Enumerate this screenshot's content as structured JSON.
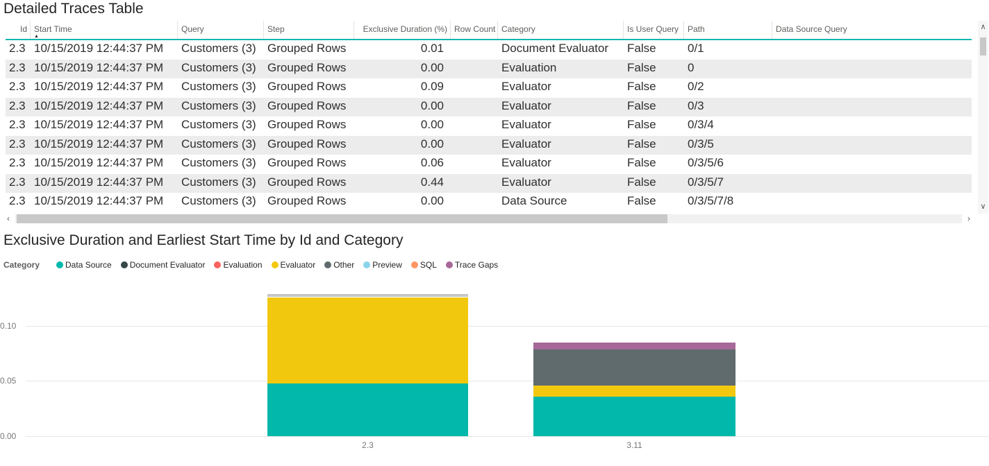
{
  "table": {
    "title": "Detailed Traces Table",
    "sorted_column": "Start Time",
    "sort_direction": "ascending",
    "columns": [
      "Id",
      "Start Time",
      "Query",
      "Step",
      "Exclusive Duration (%)",
      "Row Count",
      "Category",
      "Is User Query",
      "Path",
      "Data Source Query"
    ],
    "rows": [
      [
        "2.3",
        "10/15/2019 12:44:37 PM",
        "Customers (3)",
        "Grouped Rows",
        "0.01",
        "",
        "Document Evaluator",
        "False",
        "0/1",
        ""
      ],
      [
        "2.3",
        "10/15/2019 12:44:37 PM",
        "Customers (3)",
        "Grouped Rows",
        "0.00",
        "",
        "Evaluation",
        "False",
        "0",
        ""
      ],
      [
        "2.3",
        "10/15/2019 12:44:37 PM",
        "Customers (3)",
        "Grouped Rows",
        "0.09",
        "",
        "Evaluator",
        "False",
        "0/2",
        ""
      ],
      [
        "2.3",
        "10/15/2019 12:44:37 PM",
        "Customers (3)",
        "Grouped Rows",
        "0.00",
        "",
        "Evaluator",
        "False",
        "0/3",
        ""
      ],
      [
        "2.3",
        "10/15/2019 12:44:37 PM",
        "Customers (3)",
        "Grouped Rows",
        "0.00",
        "",
        "Evaluator",
        "False",
        "0/3/4",
        ""
      ],
      [
        "2.3",
        "10/15/2019 12:44:37 PM",
        "Customers (3)",
        "Grouped Rows",
        "0.00",
        "",
        "Evaluator",
        "False",
        "0/3/5",
        ""
      ],
      [
        "2.3",
        "10/15/2019 12:44:37 PM",
        "Customers (3)",
        "Grouped Rows",
        "0.06",
        "",
        "Evaluator",
        "False",
        "0/3/5/6",
        ""
      ],
      [
        "2.3",
        "10/15/2019 12:44:37 PM",
        "Customers (3)",
        "Grouped Rows",
        "0.44",
        "",
        "Evaluator",
        "False",
        "0/3/5/7",
        ""
      ],
      [
        "2.3",
        "10/15/2019 12:44:37 PM",
        "Customers (3)",
        "Grouped Rows",
        "0.00",
        "",
        "Data Source",
        "False",
        "0/3/5/7/8",
        ""
      ]
    ]
  },
  "icons": {
    "hscroll_left": "‹",
    "hscroll_right": "›",
    "vscroll_up": "∧",
    "vscroll_down": "∨",
    "sort_ascending": "▲"
  },
  "chart_data": {
    "type": "bar",
    "stacked": true,
    "title": "Exclusive Duration and Earliest Start Time by Id and Category",
    "legend_title": "Category",
    "legend_position": "top-left",
    "grid": true,
    "legend": [
      {
        "name": "Data Source",
        "color": "#01B8AA"
      },
      {
        "name": "Document Evaluator",
        "color": "#374649"
      },
      {
        "name": "Evaluation",
        "color": "#FD625E"
      },
      {
        "name": "Evaluator",
        "color": "#F2C80F"
      },
      {
        "name": "Other",
        "color": "#5F6B6D"
      },
      {
        "name": "Preview",
        "color": "#8AD4EB"
      },
      {
        "name": "SQL",
        "color": "#FE9666"
      },
      {
        "name": "Trace Gaps",
        "color": "#A66999"
      }
    ],
    "categories": [
      "2.3",
      "3.11"
    ],
    "bars": [
      {
        "category": "2.3",
        "segments": [
          {
            "name": "Data Source",
            "value": 0.048
          },
          {
            "name": "Evaluator",
            "value": 0.078
          },
          {
            "name": "Other",
            "value": 0.003,
            "color_override": "#C6C6C6",
            "gap_below": true
          }
        ]
      },
      {
        "category": "3.11",
        "segments": [
          {
            "name": "Data Source",
            "value": 0.036
          },
          {
            "name": "Evaluator",
            "value": 0.01
          },
          {
            "name": "Other",
            "value": 0.033
          },
          {
            "name": "Trace Gaps",
            "value": 0.006
          }
        ]
      }
    ],
    "y_ticks": [
      {
        "label": "0.00",
        "value": 0.0
      },
      {
        "label": "0.05",
        "value": 0.05
      },
      {
        "label": "0.10",
        "value": 0.1
      }
    ],
    "ylim": [
      0,
      0.145
    ],
    "xlabel": "",
    "ylabel": ""
  }
}
